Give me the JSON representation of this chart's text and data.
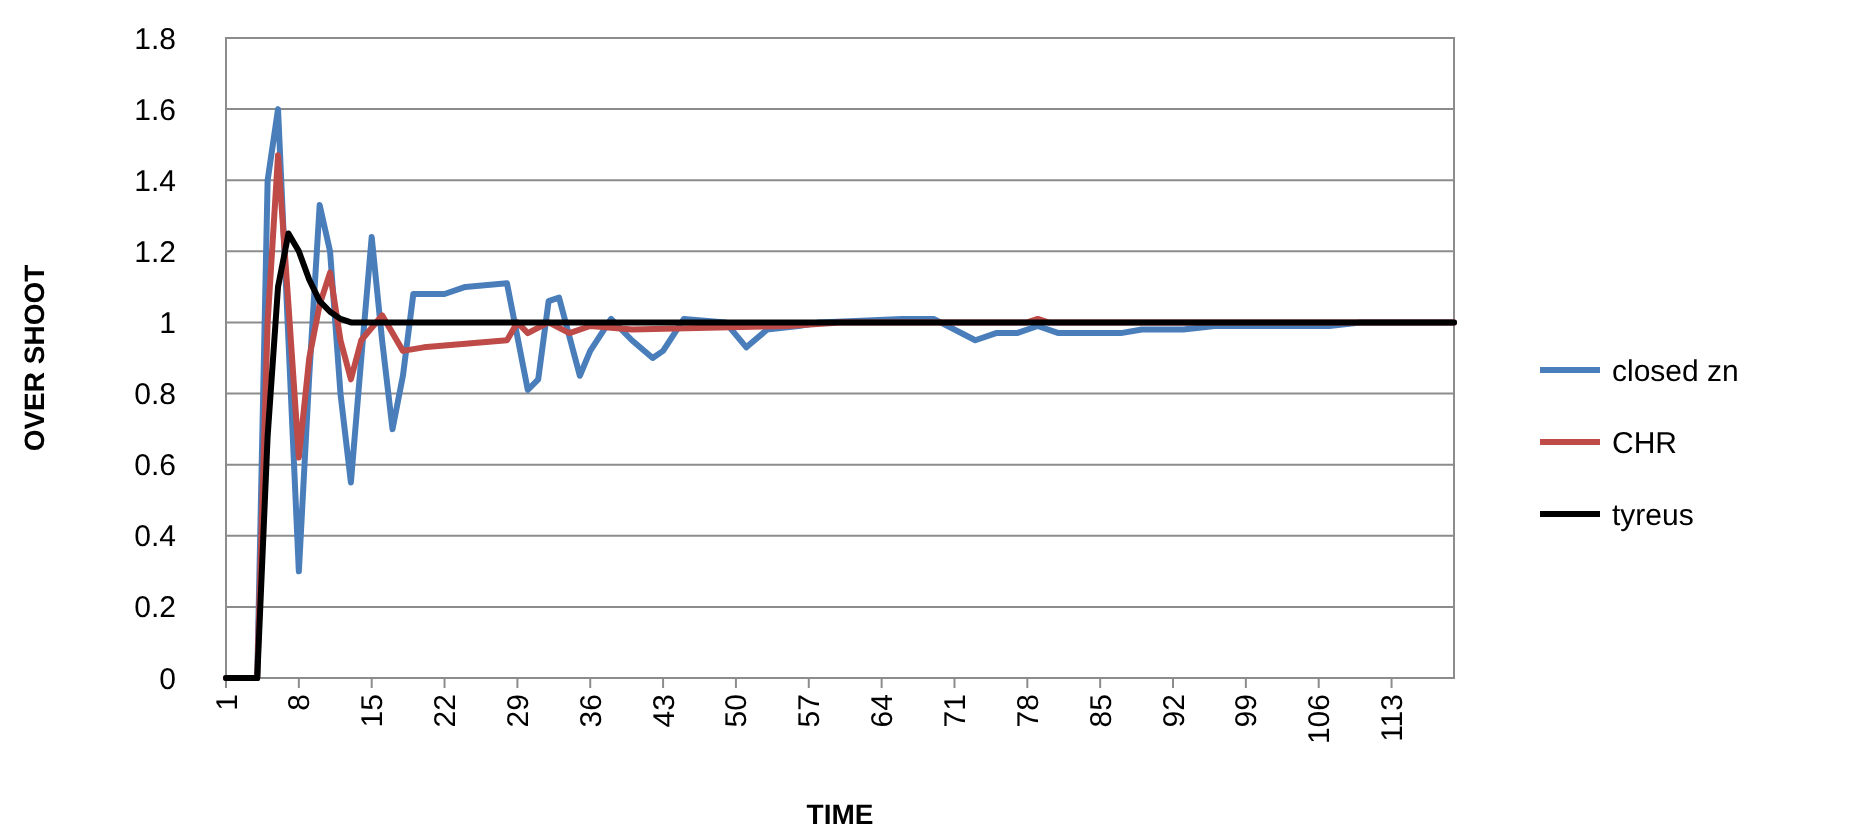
{
  "chart_data": {
    "type": "line",
    "xlabel": "TIME",
    "ylabel": "OVER SHOOT",
    "xlim": [
      1,
      119
    ],
    "xticks": [
      1,
      8,
      15,
      22,
      29,
      36,
      43,
      50,
      57,
      64,
      71,
      78,
      85,
      92,
      99,
      106,
      113
    ],
    "ylim": [
      0,
      1.8
    ],
    "yticks": [
      0,
      0.2,
      0.4,
      0.6,
      0.8,
      1,
      1.2,
      1.4,
      1.6,
      1.8
    ],
    "grid": "y",
    "legend": "right",
    "marker": "none",
    "line_style": "solid",
    "series": [
      {
        "name": "closed zn",
        "color": "#4a7ebb",
        "x": [
          1,
          4,
          5,
          6,
          7,
          8,
          9,
          10,
          11,
          12,
          13,
          14,
          15,
          16,
          17,
          18,
          19,
          22,
          24,
          28,
          30,
          31,
          32,
          33,
          35,
          36,
          38,
          40,
          42,
          43,
          45,
          49,
          51,
          53,
          56,
          58,
          66,
          69,
          73,
          75,
          77,
          79,
          81,
          87,
          89,
          93,
          96,
          107,
          110,
          119
        ],
        "values": [
          0,
          0,
          1.4,
          1.6,
          0.95,
          0.3,
          0.85,
          1.33,
          1.2,
          0.8,
          0.55,
          0.9,
          1.24,
          0.95,
          0.7,
          0.85,
          1.08,
          1.08,
          1.1,
          1.11,
          0.81,
          0.84,
          1.06,
          1.07,
          0.85,
          0.92,
          1.01,
          0.95,
          0.9,
          0.92,
          1.01,
          1,
          0.93,
          0.98,
          0.99,
          1,
          1.01,
          1.01,
          0.95,
          0.97,
          0.97,
          0.99,
          0.97,
          0.97,
          0.98,
          0.98,
          0.99,
          0.99,
          1,
          1
        ]
      },
      {
        "name": "CHR",
        "color": "#be4b48",
        "x": [
          1,
          4,
          5,
          6,
          7,
          8,
          9,
          10,
          11,
          12,
          13,
          14,
          16,
          18,
          20,
          24,
          28,
          29,
          30,
          32,
          34,
          36,
          40,
          55,
          60,
          78,
          79,
          80,
          119
        ],
        "values": [
          0,
          0,
          1,
          1.47,
          1.05,
          0.62,
          0.9,
          1.05,
          1.14,
          0.95,
          0.84,
          0.95,
          1.02,
          0.92,
          0.93,
          0.94,
          0.95,
          1,
          0.97,
          1,
          0.97,
          0.99,
          0.98,
          0.99,
          1,
          1,
          1.01,
          1,
          1
        ]
      },
      {
        "name": "tyreus",
        "color": "#000000",
        "x": [
          1,
          4,
          5,
          6,
          7,
          8,
          9,
          10,
          11,
          12,
          13,
          119
        ],
        "values": [
          0,
          0,
          0.68,
          1.1,
          1.25,
          1.2,
          1.12,
          1.06,
          1.03,
          1.01,
          1,
          1
        ]
      }
    ]
  }
}
